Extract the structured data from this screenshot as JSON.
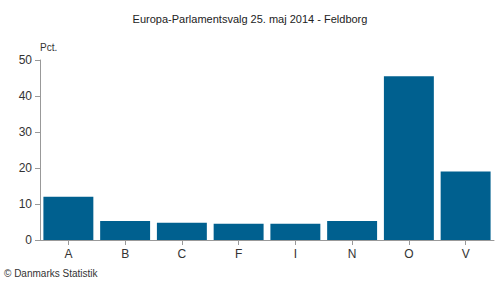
{
  "chart_data": {
    "type": "bar",
    "title": "Europa-Parlamentsvalg 25. maj 2014 - Feldborg",
    "y_label": "Pct.",
    "categories": [
      "A",
      "B",
      "C",
      "F",
      "I",
      "N",
      "O",
      "V"
    ],
    "values": [
      12,
      5.3,
      4.8,
      4.5,
      4.5,
      5.3,
      45.5,
      19
    ],
    "color": "#00608f",
    "ylim": [
      0,
      50
    ],
    "yticks": [
      0,
      10,
      20,
      30,
      40,
      50
    ],
    "grid": false,
    "annotations": [
      "© Danmarks Statistik"
    ]
  }
}
